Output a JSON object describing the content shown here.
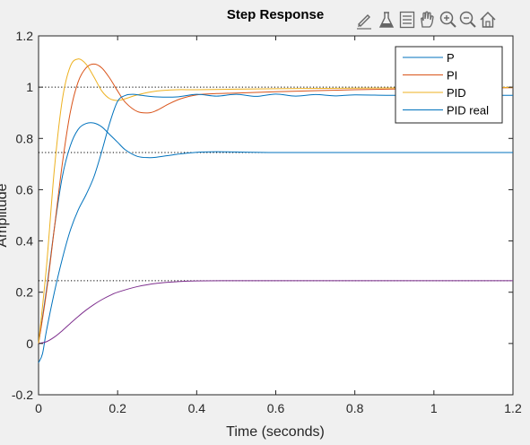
{
  "toolbar": {
    "icons": [
      "brush-icon",
      "flask-icon",
      "legend-icon",
      "pan-hand-icon",
      "zoom-in-icon",
      "zoom-out-icon",
      "home-icon"
    ]
  },
  "chart_data": {
    "type": "line",
    "title": "Step Response",
    "xlabel": "Time (seconds)",
    "ylabel": "Amplitude",
    "xlim": [
      0,
      1.2
    ],
    "ylim": [
      -0.2,
      1.2
    ],
    "xticks": [
      "0",
      "0.2",
      "0.4",
      "0.6",
      "0.8",
      "1",
      "1.2"
    ],
    "yticks": [
      "-0.2",
      "0",
      "0.2",
      "0.4",
      "0.6",
      "0.8",
      "1",
      "1.2"
    ],
    "grid": false,
    "legend_position": "top-right",
    "reference_lines": [
      1.0,
      0.745,
      0.245
    ],
    "series": [
      {
        "name": "P",
        "color": "#0072bd",
        "x": [
          0,
          0.02,
          0.04,
          0.06,
          0.08,
          0.1,
          0.12,
          0.14,
          0.16,
          0.18,
          0.2,
          0.22,
          0.25,
          0.28,
          0.3,
          0.35,
          0.4,
          0.45,
          0.5,
          0.6,
          0.8,
          1.0,
          1.2
        ],
        "y": [
          0,
          0.21,
          0.45,
          0.65,
          0.77,
          0.835,
          0.858,
          0.86,
          0.845,
          0.815,
          0.785,
          0.755,
          0.73,
          0.725,
          0.727,
          0.738,
          0.746,
          0.748,
          0.747,
          0.745,
          0.745,
          0.745,
          0.745
        ]
      },
      {
        "name": "PI",
        "color": "#d95319",
        "x": [
          0,
          0.02,
          0.04,
          0.06,
          0.08,
          0.1,
          0.12,
          0.14,
          0.16,
          0.18,
          0.2,
          0.22,
          0.25,
          0.28,
          0.3,
          0.33,
          0.36,
          0.4,
          0.45,
          0.5,
          0.6,
          0.8,
          1.0,
          1.2
        ],
        "y": [
          0,
          0.2,
          0.45,
          0.7,
          0.9,
          1.02,
          1.075,
          1.09,
          1.075,
          1.035,
          0.985,
          0.94,
          0.905,
          0.9,
          0.91,
          0.935,
          0.955,
          0.97,
          0.975,
          0.977,
          0.982,
          0.99,
          0.995,
          0.998
        ]
      },
      {
        "name": "PID",
        "color": "#edb120",
        "x": [
          0,
          0.02,
          0.04,
          0.06,
          0.08,
          0.1,
          0.12,
          0.14,
          0.16,
          0.18,
          0.2,
          0.22,
          0.25,
          0.3,
          0.35,
          0.4,
          0.5,
          0.6,
          0.8,
          1.0,
          1.2
        ],
        "y": [
          0,
          0.3,
          0.68,
          0.95,
          1.08,
          1.11,
          1.09,
          1.04,
          0.985,
          0.955,
          0.948,
          0.955,
          0.97,
          0.985,
          0.99,
          0.99,
          0.992,
          0.994,
          0.996,
          0.998,
          0.999
        ]
      },
      {
        "name": "PID real",
        "color": "#0072bd",
        "x": [
          0,
          0.01,
          0.02,
          0.04,
          0.06,
          0.08,
          0.1,
          0.12,
          0.14,
          0.16,
          0.18,
          0.2,
          0.22,
          0.24,
          0.26,
          0.3,
          0.35,
          0.4,
          0.45,
          0.5,
          0.55,
          0.6,
          0.65,
          0.7,
          0.75,
          0.8,
          0.9,
          1.0,
          1.1,
          1.2
        ],
        "y": [
          -0.075,
          -0.04,
          0.05,
          0.2,
          0.33,
          0.44,
          0.52,
          0.58,
          0.65,
          0.75,
          0.86,
          0.945,
          0.968,
          0.972,
          0.968,
          0.962,
          0.962,
          0.972,
          0.965,
          0.972,
          0.964,
          0.973,
          0.965,
          0.971,
          0.966,
          0.97,
          0.968,
          0.969,
          0.968,
          0.968
        ]
      },
      {
        "name": "",
        "color": "#7e2f8e",
        "x": [
          0,
          0.02,
          0.04,
          0.06,
          0.08,
          0.1,
          0.12,
          0.14,
          0.16,
          0.18,
          0.2,
          0.25,
          0.3,
          0.35,
          0.4,
          0.5,
          0.6,
          0.8,
          1.0,
          1.2
        ],
        "y": [
          0,
          0.007,
          0.025,
          0.05,
          0.078,
          0.105,
          0.13,
          0.152,
          0.171,
          0.187,
          0.2,
          0.222,
          0.235,
          0.241,
          0.244,
          0.245,
          0.245,
          0.245,
          0.245,
          0.245
        ]
      }
    ]
  }
}
